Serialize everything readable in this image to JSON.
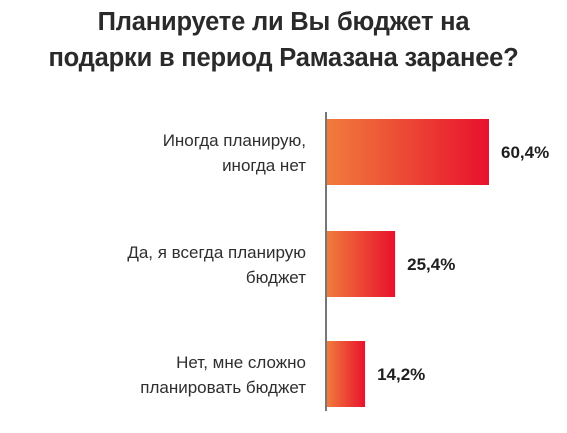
{
  "chart_data": {
    "type": "bar",
    "orientation": "horizontal",
    "title_lines": [
      "Планируете ли Вы бюджет на",
      "подарки в период Рамазана заранее?"
    ],
    "categories": [
      [
        "Иногда планирую,",
        "иногда нет"
      ],
      [
        "Да, я всегда планирую",
        "бюджет"
      ],
      [
        "Нет, мне сложно",
        "планировать бюджет"
      ]
    ],
    "values": [
      60.4,
      25.4,
      14.2
    ],
    "value_labels": [
      "60,4%",
      "25,4%",
      "14,2%"
    ],
    "xlim": [
      0,
      60.4
    ],
    "grid": false,
    "colors": {
      "bar_start": "#f07c3c",
      "bar_end": "#e8112d",
      "axis": "#555555"
    }
  }
}
